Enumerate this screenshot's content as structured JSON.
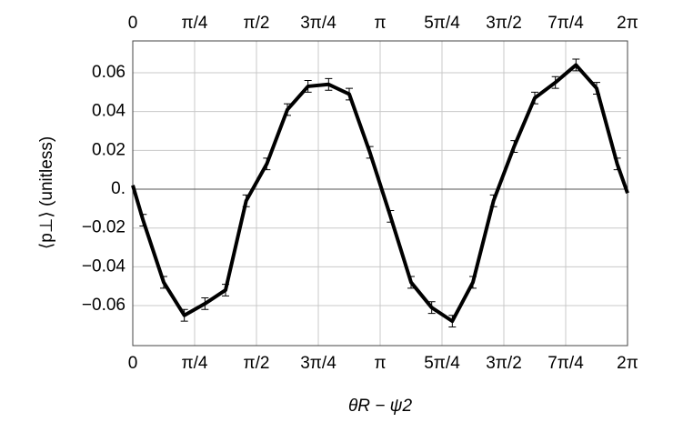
{
  "chart_data": {
    "type": "line",
    "xlabel": "θR − ψ2",
    "ylabel": "⟨p⊥⟩ (unitless)",
    "x": [
      0,
      0.1309,
      0.3927,
      0.6545,
      0.9163,
      1.1781,
      1.4399,
      1.7017,
      1.9635,
      2.2253,
      2.4871,
      2.7489,
      3.0107,
      3.2725,
      3.5343,
      3.7961,
      4.0579,
      4.3197,
      4.5815,
      4.8433,
      5.1051,
      5.3669,
      5.6287,
      5.8905,
      6.1523,
      6.2832
    ],
    "values": [
      0.002,
      -0.016,
      -0.048,
      -0.065,
      -0.059,
      -0.052,
      -0.006,
      0.013,
      0.041,
      0.053,
      0.054,
      0.049,
      0.019,
      -0.014,
      -0.048,
      -0.061,
      -0.068,
      -0.048,
      -0.006,
      0.022,
      0.047,
      0.055,
      0.064,
      0.052,
      0.013,
      -0.002
    ],
    "errors": [
      null,
      0.003,
      0.003,
      0.003,
      0.003,
      0.003,
      0.003,
      0.003,
      0.003,
      0.003,
      0.003,
      0.003,
      0.003,
      0.003,
      0.003,
      0.003,
      0.003,
      0.003,
      0.003,
      0.003,
      0.003,
      0.003,
      0.003,
      0.003,
      0.003,
      null
    ],
    "color": "#000000",
    "xlim": [
      0,
      6.2832
    ],
    "xticks": [
      0,
      {
        "value": 0.7854,
        "label": "π/4"
      },
      {
        "value": 1.5708,
        "label": "π/2"
      },
      {
        "value": 2.3562,
        "label": "3π/4"
      },
      {
        "value": 3.1416,
        "label": "π"
      },
      {
        "value": 3.927,
        "label": "5π/4"
      },
      {
        "value": 4.7124,
        "label": "3π/2"
      },
      {
        "value": 5.4978,
        "label": "7π/4"
      },
      {
        "value": 6.2832,
        "label": "2π"
      }
    ],
    "ylim": [
      -0.0806,
      0.0764
    ],
    "yticks": [
      {
        "value": -0.06,
        "label": "−0.06"
      },
      {
        "value": -0.04,
        "label": "−0.04"
      },
      {
        "value": -0.02,
        "label": "−0.02"
      },
      {
        "value": 0,
        "label": "0."
      },
      0.02,
      0.04,
      0.06
    ],
    "grid": true
  }
}
